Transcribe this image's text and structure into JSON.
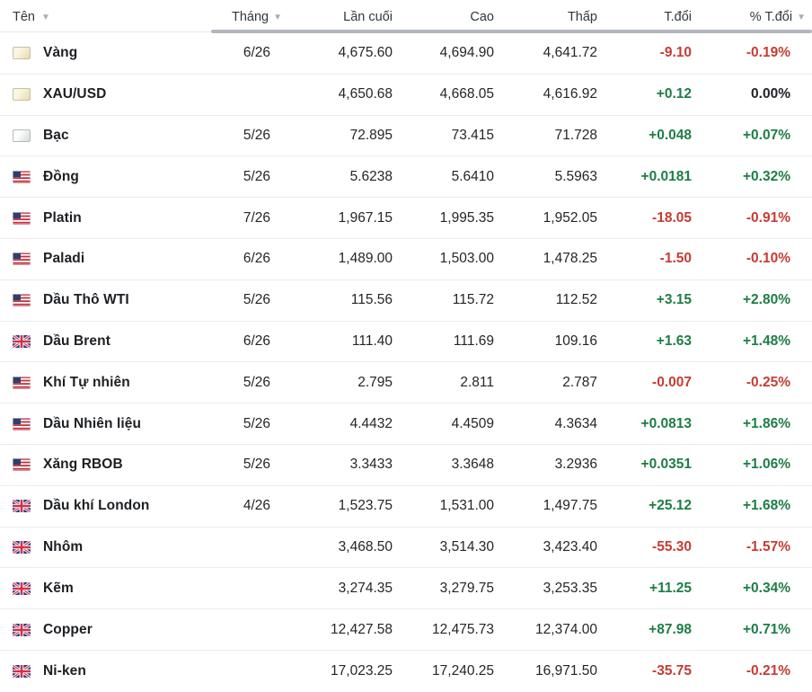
{
  "table": {
    "columns": {
      "name": "Tên",
      "month": "Tháng",
      "last": "Lần cuối",
      "high": "Cao",
      "low": "Thấp",
      "change": "T.đổi",
      "change_pct": "% T.đổi"
    },
    "sort_icon": "▼",
    "rows": [
      {
        "name": "Vàng",
        "flag": "gold-bar-icon",
        "month": "6/26",
        "last": "4,675.60",
        "high": "4,694.90",
        "low": "4,641.72",
        "change": "-9.10",
        "change_dir": "down",
        "change_pct": "-0.19%",
        "pct_dir": "down"
      },
      {
        "name": "XAU/USD",
        "flag": "gold-bar-icon",
        "month": "",
        "last": "4,650.68",
        "high": "4,668.05",
        "low": "4,616.92",
        "change": "+0.12",
        "change_dir": "up",
        "change_pct": "0.00%",
        "pct_dir": "neutral"
      },
      {
        "name": "Bạc",
        "flag": "silver-bar-icon",
        "month": "5/26",
        "last": "72.895",
        "high": "73.415",
        "low": "71.728",
        "change": "+0.048",
        "change_dir": "up",
        "change_pct": "+0.07%",
        "pct_dir": "up"
      },
      {
        "name": "Đồng",
        "flag": "us-flag-icon",
        "month": "5/26",
        "last": "5.6238",
        "high": "5.6410",
        "low": "5.5963",
        "change": "+0.0181",
        "change_dir": "up",
        "change_pct": "+0.32%",
        "pct_dir": "up"
      },
      {
        "name": "Platin",
        "flag": "us-flag-icon",
        "month": "7/26",
        "last": "1,967.15",
        "high": "1,995.35",
        "low": "1,952.05",
        "change": "-18.05",
        "change_dir": "down",
        "change_pct": "-0.91%",
        "pct_dir": "down"
      },
      {
        "name": "Paladi",
        "flag": "us-flag-icon",
        "month": "6/26",
        "last": "1,489.00",
        "high": "1,503.00",
        "low": "1,478.25",
        "change": "-1.50",
        "change_dir": "down",
        "change_pct": "-0.10%",
        "pct_dir": "down"
      },
      {
        "name": "Dầu Thô WTI",
        "flag": "us-flag-icon",
        "month": "5/26",
        "last": "115.56",
        "high": "115.72",
        "low": "112.52",
        "change": "+3.15",
        "change_dir": "up",
        "change_pct": "+2.80%",
        "pct_dir": "up"
      },
      {
        "name": "Dầu Brent",
        "flag": "uk-flag-icon",
        "month": "6/26",
        "last": "111.40",
        "high": "111.69",
        "low": "109.16",
        "change": "+1.63",
        "change_dir": "up",
        "change_pct": "+1.48%",
        "pct_dir": "up"
      },
      {
        "name": "Khí Tự nhiên",
        "flag": "us-flag-icon",
        "month": "5/26",
        "last": "2.795",
        "high": "2.811",
        "low": "2.787",
        "change": "-0.007",
        "change_dir": "down",
        "change_pct": "-0.25%",
        "pct_dir": "down"
      },
      {
        "name": "Dầu Nhiên liệu",
        "flag": "us-flag-icon",
        "month": "5/26",
        "last": "4.4432",
        "high": "4.4509",
        "low": "4.3634",
        "change": "+0.0813",
        "change_dir": "up",
        "change_pct": "+1.86%",
        "pct_dir": "up"
      },
      {
        "name": "Xăng RBOB",
        "flag": "us-flag-icon",
        "month": "5/26",
        "last": "3.3433",
        "high": "3.3648",
        "low": "3.2936",
        "change": "+0.0351",
        "change_dir": "up",
        "change_pct": "+1.06%",
        "pct_dir": "up"
      },
      {
        "name": "Dầu khí London",
        "flag": "uk-flag-icon",
        "month": "4/26",
        "last": "1,523.75",
        "high": "1,531.00",
        "low": "1,497.75",
        "change": "+25.12",
        "change_dir": "up",
        "change_pct": "+1.68%",
        "pct_dir": "up"
      },
      {
        "name": "Nhôm",
        "flag": "uk-flag-icon",
        "month": "",
        "last": "3,468.50",
        "high": "3,514.30",
        "low": "3,423.40",
        "change": "-55.30",
        "change_dir": "down",
        "change_pct": "-1.57%",
        "pct_dir": "down"
      },
      {
        "name": "Kẽm",
        "flag": "uk-flag-icon",
        "month": "",
        "last": "3,274.35",
        "high": "3,279.75",
        "low": "3,253.35",
        "change": "+11.25",
        "change_dir": "up",
        "change_pct": "+0.34%",
        "pct_dir": "up"
      },
      {
        "name": "Copper",
        "flag": "uk-flag-icon",
        "month": "",
        "last": "12,427.58",
        "high": "12,475.73",
        "low": "12,374.00",
        "change": "+87.98",
        "change_dir": "up",
        "change_pct": "+0.71%",
        "pct_dir": "up"
      },
      {
        "name": "Ni-ken",
        "flag": "uk-flag-icon",
        "month": "",
        "last": "17,023.25",
        "high": "17,240.25",
        "low": "16,971.50",
        "change": "-35.75",
        "change_dir": "down",
        "change_pct": "-0.21%",
        "pct_dir": "down"
      }
    ]
  },
  "colors": {
    "up": "#1e7d46",
    "down": "#c43c32",
    "neutral": "#202327",
    "header_bar": "#b2b6bd"
  }
}
